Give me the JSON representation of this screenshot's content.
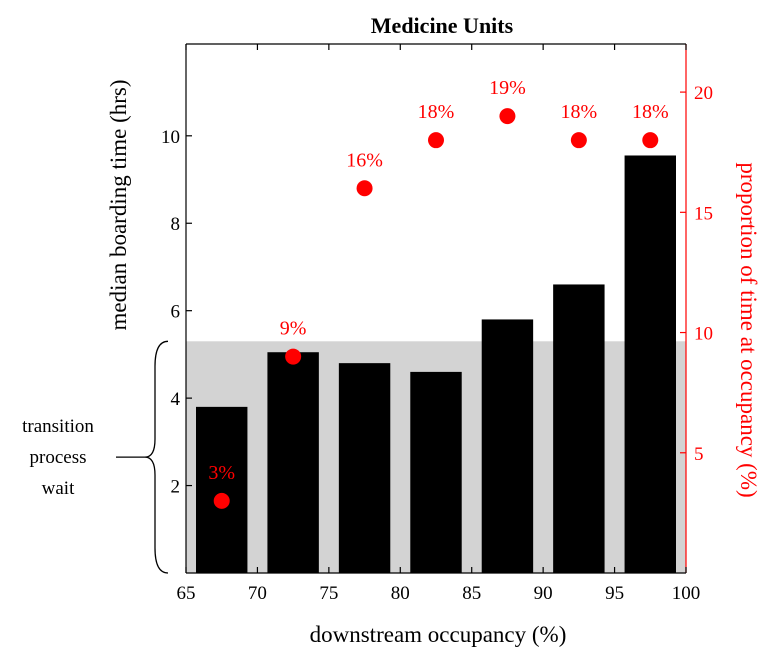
{
  "chart_data": {
    "type": "bar",
    "title": "Medicine Units",
    "xlabel": "downstream occupancy (%)",
    "ylabel": "median boarding time (hrs)",
    "y2label": "proportion of time at occupancy (%)",
    "x_ticks": [
      65,
      70,
      75,
      80,
      85,
      90,
      95,
      100
    ],
    "y_ticks": [
      2,
      4,
      6,
      8,
      10
    ],
    "y2_ticks": [
      5,
      10,
      15,
      20
    ],
    "xlim": [
      65,
      100
    ],
    "ylim": [
      0,
      12.1
    ],
    "y2lim": [
      0,
      22
    ],
    "bar_width": 3.6,
    "bars": {
      "x": [
        67.5,
        72.5,
        77.5,
        82.5,
        87.5,
        92.5,
        97.5
      ],
      "values": [
        3.8,
        5.05,
        4.8,
        4.6,
        5.8,
        6.6,
        9.55
      ]
    },
    "points": {
      "x": [
        67.5,
        72.5,
        77.5,
        82.5,
        87.5,
        92.5,
        97.5
      ],
      "values": [
        3,
        9,
        16,
        18,
        19,
        18,
        18
      ],
      "labels": [
        "3%",
        "9%",
        "16%",
        "18%",
        "19%",
        "18%",
        "18%"
      ]
    },
    "shaded_band": {
      "ymin": 0,
      "ymax": 5.3
    },
    "annotation": {
      "lines": [
        "transition",
        "process",
        "wait"
      ],
      "brace_from": 0,
      "brace_to": 5.3
    },
    "grid": false,
    "colors": {
      "bars": "#000000",
      "points": "#ff0000",
      "band": "#d3d3d3",
      "right_axis": "#ff0000"
    }
  }
}
